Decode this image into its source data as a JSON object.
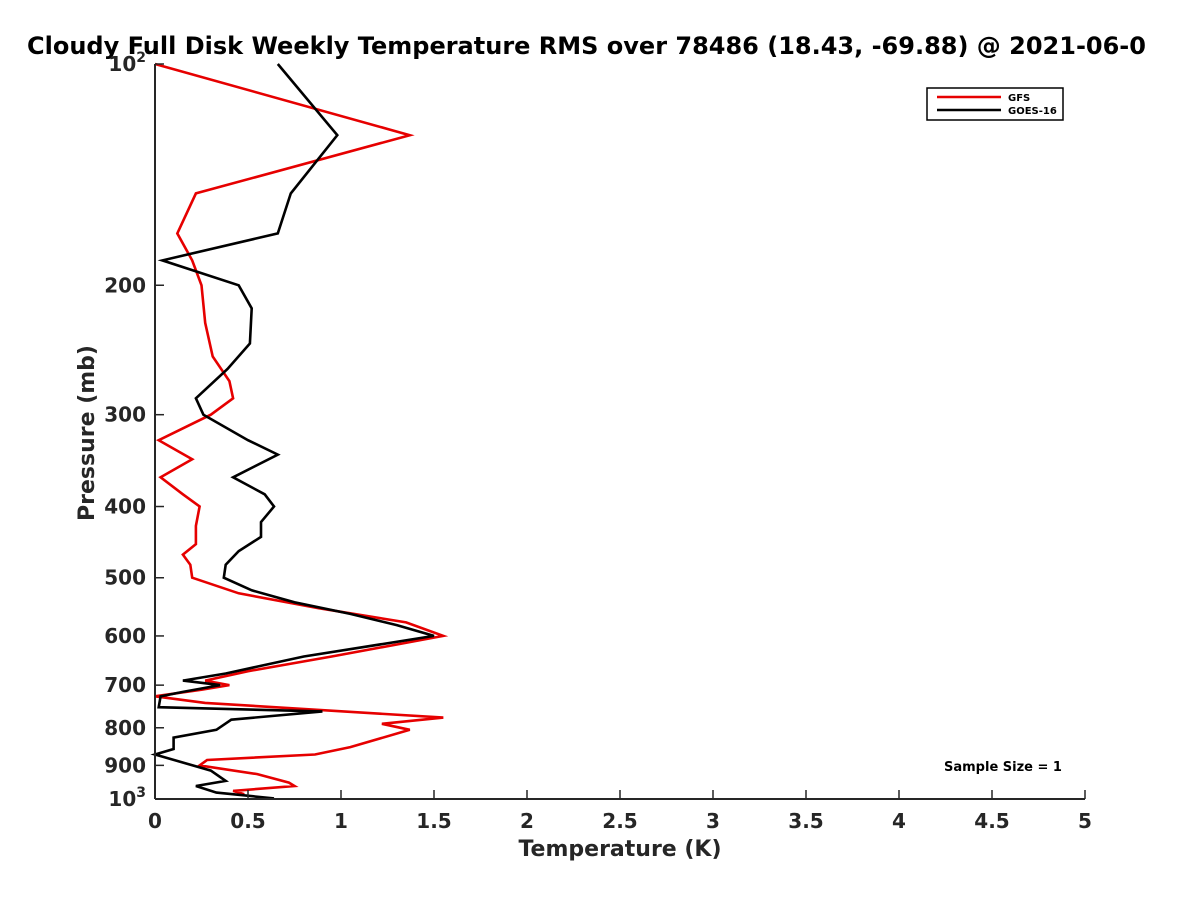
{
  "chart_data": {
    "type": "line",
    "title": "Cloudy Full Disk Weekly Temperature RMS over 78486 (18.43, -69.88) @ 2021-06-0",
    "xlabel": "Temperature (K)",
    "ylabel": "Pressure (mb)",
    "xlim": [
      0,
      5
    ],
    "ylim": [
      100,
      1000
    ],
    "y_scale": "log",
    "y_reversed": true,
    "grid": false,
    "legend_position": "top-right",
    "x_ticks": [
      {
        "value": 0,
        "label": "0"
      },
      {
        "value": 0.5,
        "label": "0.5"
      },
      {
        "value": 1,
        "label": "1"
      },
      {
        "value": 1.5,
        "label": "1.5"
      },
      {
        "value": 2,
        "label": "2"
      },
      {
        "value": 2.5,
        "label": "2.5"
      },
      {
        "value": 3,
        "label": "3"
      },
      {
        "value": 3.5,
        "label": "3.5"
      },
      {
        "value": 4,
        "label": "4"
      },
      {
        "value": 4.5,
        "label": "4.5"
      },
      {
        "value": 5,
        "label": "5"
      }
    ],
    "y_ticks": [
      {
        "value": 100,
        "base": "10",
        "exp": "2"
      },
      {
        "value": 200,
        "label": "200"
      },
      {
        "value": 300,
        "label": "300"
      },
      {
        "value": 400,
        "label": "400"
      },
      {
        "value": 500,
        "label": "500"
      },
      {
        "value": 600,
        "label": "600"
      },
      {
        "value": 700,
        "label": "700"
      },
      {
        "value": 800,
        "label": "800"
      },
      {
        "value": 900,
        "label": "900"
      },
      {
        "value": 1000,
        "base": "10",
        "exp": "3"
      }
    ],
    "series": [
      {
        "name": "GFS",
        "color": "#e60000",
        "points": [
          [
            0.0,
            100
          ],
          [
            1.37,
            125
          ],
          [
            0.22,
            150
          ],
          [
            0.12,
            170
          ],
          [
            0.2,
            185
          ],
          [
            0.25,
            200
          ],
          [
            0.27,
            225
          ],
          [
            0.31,
            250
          ],
          [
            0.4,
            270
          ],
          [
            0.42,
            285
          ],
          [
            0.3,
            300
          ],
          [
            0.02,
            325
          ],
          [
            0.2,
            345
          ],
          [
            0.03,
            365
          ],
          [
            0.15,
            385
          ],
          [
            0.24,
            400
          ],
          [
            0.22,
            425
          ],
          [
            0.22,
            450
          ],
          [
            0.15,
            465
          ],
          [
            0.19,
            480
          ],
          [
            0.2,
            500
          ],
          [
            0.45,
            525
          ],
          [
            0.88,
            550
          ],
          [
            1.35,
            575
          ],
          [
            1.55,
            600
          ],
          [
            0.95,
            640
          ],
          [
            0.5,
            670
          ],
          [
            0.27,
            690
          ],
          [
            0.4,
            700
          ],
          [
            0.25,
            710
          ],
          [
            0.0,
            725
          ],
          [
            0.27,
            740
          ],
          [
            1.55,
            775
          ],
          [
            1.22,
            790
          ],
          [
            1.37,
            805
          ],
          [
            1.05,
            850
          ],
          [
            0.86,
            870
          ],
          [
            0.28,
            885
          ],
          [
            0.24,
            900
          ],
          [
            0.55,
            925
          ],
          [
            0.72,
            950
          ],
          [
            0.75,
            960
          ],
          [
            0.42,
            975
          ],
          [
            0.48,
            985
          ]
        ]
      },
      {
        "name": "GOES-16",
        "color": "#000000",
        "points": [
          [
            0.66,
            100
          ],
          [
            0.98,
            125
          ],
          [
            0.73,
            150
          ],
          [
            0.66,
            170
          ],
          [
            0.04,
            185
          ],
          [
            0.45,
            200
          ],
          [
            0.52,
            215
          ],
          [
            0.51,
            240
          ],
          [
            0.39,
            260
          ],
          [
            0.22,
            285
          ],
          [
            0.26,
            300
          ],
          [
            0.5,
            325
          ],
          [
            0.66,
            340
          ],
          [
            0.42,
            365
          ],
          [
            0.59,
            385
          ],
          [
            0.64,
            400
          ],
          [
            0.57,
            420
          ],
          [
            0.57,
            440
          ],
          [
            0.45,
            460
          ],
          [
            0.38,
            480
          ],
          [
            0.37,
            500
          ],
          [
            0.52,
            520
          ],
          [
            0.75,
            540
          ],
          [
            1.05,
            560
          ],
          [
            1.3,
            580
          ],
          [
            1.5,
            600
          ],
          [
            0.8,
            640
          ],
          [
            0.38,
            675
          ],
          [
            0.15,
            690
          ],
          [
            0.35,
            700
          ],
          [
            0.15,
            715
          ],
          [
            0.03,
            725
          ],
          [
            0.02,
            750
          ],
          [
            0.9,
            760
          ],
          [
            0.41,
            780
          ],
          [
            0.33,
            805
          ],
          [
            0.1,
            825
          ],
          [
            0.1,
            855
          ],
          [
            0.0,
            870
          ],
          [
            0.3,
            915
          ],
          [
            0.38,
            945
          ],
          [
            0.22,
            960
          ],
          [
            0.33,
            980
          ],
          [
            0.64,
            998
          ]
        ]
      }
    ],
    "annotation": "Sample Size = 1"
  }
}
